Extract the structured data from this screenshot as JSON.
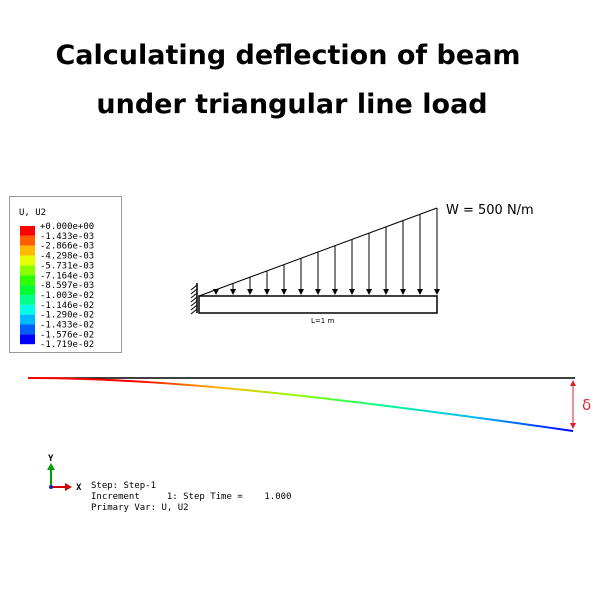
{
  "header": {
    "title_lines": [
      "Calculating deflection of beam",
      "under triangular line load"
    ]
  },
  "legend": {
    "title": "U, U2",
    "labels": [
      "+0.000e+00",
      "-1.433e-03",
      "-2.866e-03",
      "-4.298e-03",
      "-5.731e-03",
      "-7.164e-03",
      "-8.597e-03",
      "-1.003e-02",
      "-1.146e-02",
      "-1.290e-02",
      "-1.433e-02",
      "-1.576e-02",
      "-1.719e-02"
    ],
    "colors": [
      "#ff0000",
      "#ff5d00",
      "#ffb900",
      "#e8ff00",
      "#8bff00",
      "#2eff00",
      "#00ff2e",
      "#00ff8b",
      "#00ffe8",
      "#00b9ff",
      "#005dff",
      "#0000ff"
    ]
  },
  "beam": {
    "load_label": "W = 500 N/m",
    "length_label": "L=1 m",
    "deflection_label": "δ"
  },
  "triad": {
    "y": "Y",
    "x": "X"
  },
  "step_info": [
    "Step: Step-1",
    "Increment     1: Step Time =    1.000",
    "Primary Var: U, U2"
  ]
}
